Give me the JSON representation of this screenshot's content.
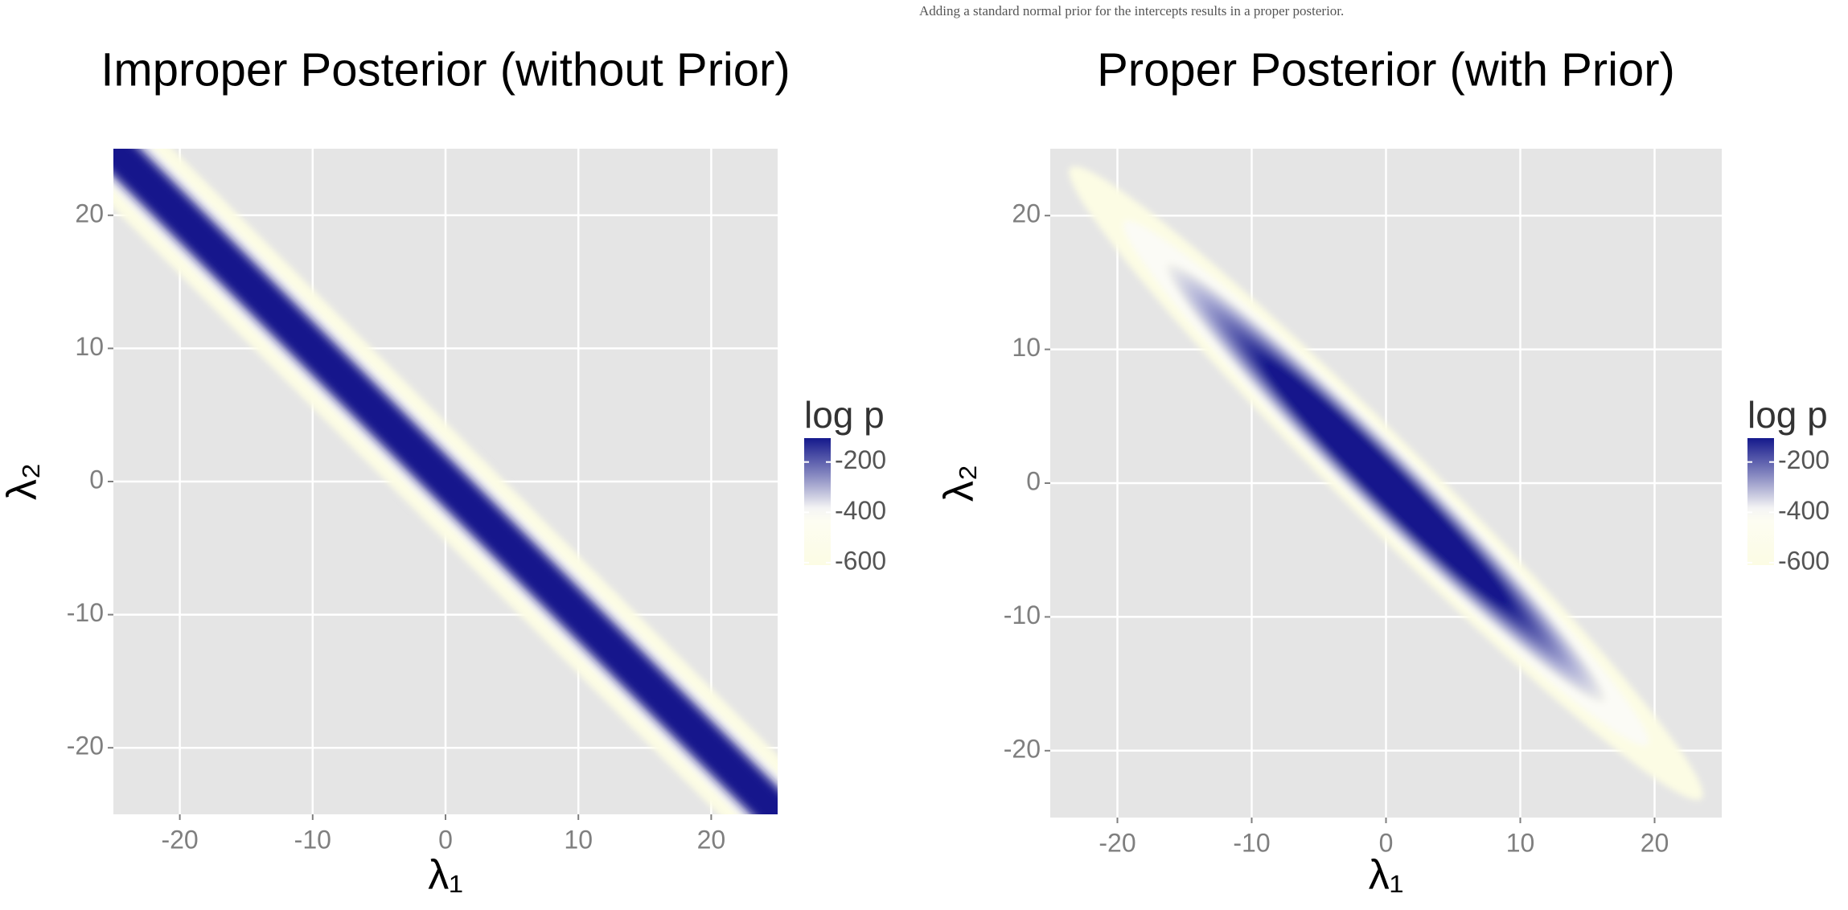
{
  "caption": "Adding a standard normal prior for the intercepts results in a proper posterior.",
  "chart_data": [
    {
      "type": "heatmap",
      "title": "Improper Posterior (without Prior)",
      "xlabel": "λ₁",
      "ylabel": "λ₂",
      "xlim": [
        -25,
        25
      ],
      "ylim": [
        -25,
        25
      ],
      "xticks": [
        -20,
        -10,
        0,
        10,
        20
      ],
      "yticks": [
        -20,
        -10,
        0,
        10,
        20
      ],
      "grid": true,
      "legend": {
        "title": "log p",
        "lim": [
          -610,
          -105
        ],
        "ticks": [
          -200,
          -400,
          -600
        ],
        "colors": [
          "#fcfce4",
          "#15198c"
        ]
      }
    },
    {
      "type": "heatmap",
      "title": "Proper Posterior (with Prior)",
      "xlabel": "λ₁",
      "ylabel": "λ₂",
      "xlim": [
        -25,
        25
      ],
      "ylim": [
        -25,
        25
      ],
      "xticks": [
        -20,
        -10,
        0,
        10,
        20
      ],
      "yticks": [
        -20,
        -10,
        0,
        10,
        20
      ],
      "grid": true,
      "legend": {
        "title": "log p",
        "lim": [
          -610,
          -105
        ],
        "ticks": [
          -200,
          -400,
          -600
        ],
        "colors": [
          "#fcfce4",
          "#15198c"
        ]
      }
    }
  ]
}
